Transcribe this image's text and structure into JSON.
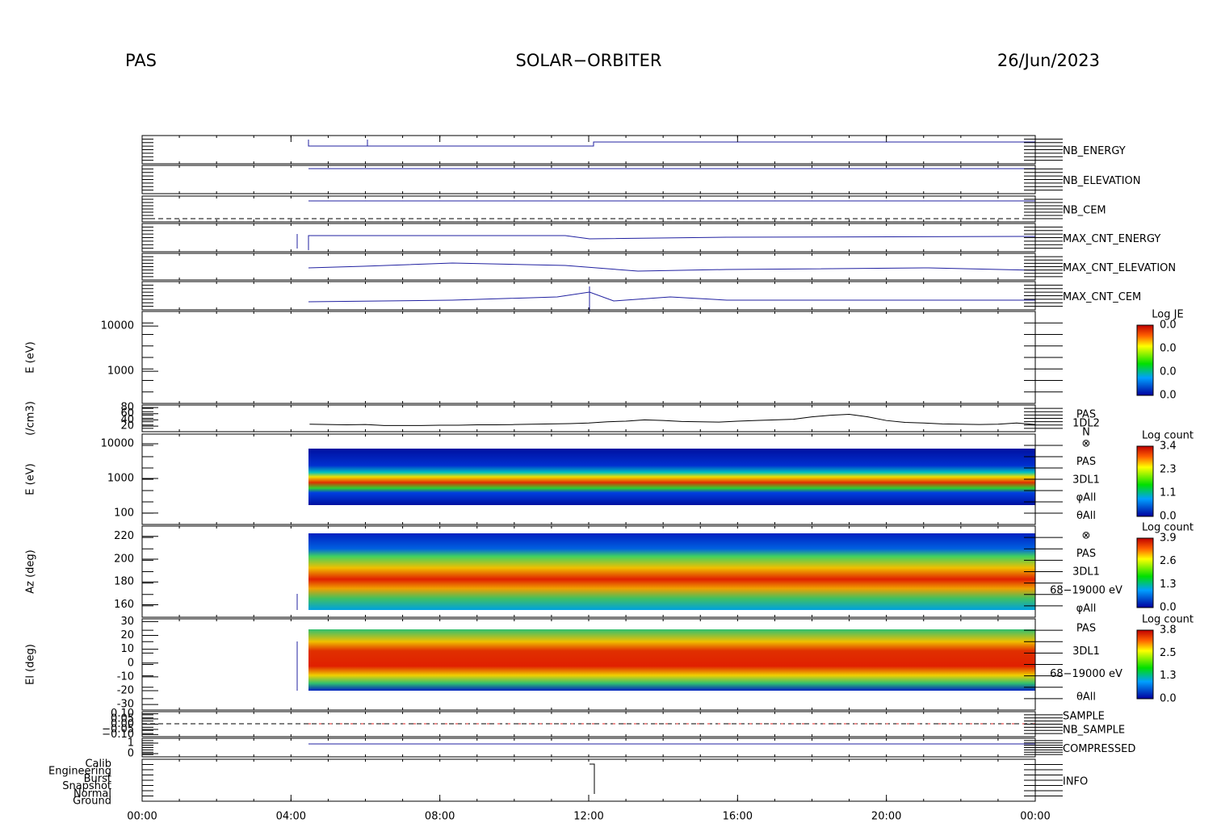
{
  "header": {
    "left": "PAS",
    "center": "SOLAR−ORBITER",
    "right": "26/Jun/2023"
  },
  "chart_data": {
    "type": "multi-panel",
    "xlim": [
      0,
      24
    ],
    "xticks": [
      {
        "value": 0,
        "label": "00:00"
      },
      {
        "value": 4,
        "label": "04:00"
      },
      {
        "value": 8,
        "label": "08:00"
      },
      {
        "value": 12,
        "label": "12:00"
      },
      {
        "value": 16,
        "label": "16:00"
      },
      {
        "value": 20,
        "label": "20:00"
      },
      {
        "value": 24,
        "label": "00:00"
      }
    ],
    "panels": [
      {
        "label": "NB_ENERGY",
        "label_color": "#2020a0"
      },
      {
        "label": "NB_ELEVATION",
        "label_color": "#2020a0"
      },
      {
        "label": "NB_CEM",
        "label_color": "#2020a0"
      },
      {
        "label": "MAX_CNT_ENERGY",
        "label_color": "#2020a0"
      },
      {
        "label": "MAX_CNT_ELEVATION",
        "label_color": "#2020a0"
      },
      {
        "label": "MAX_CNT_CEM",
        "label_color": "#2020a0"
      },
      {
        "ylabel": "E (eV)",
        "log": true,
        "ylim": [
          195,
          21000
        ],
        "yticks": [
          10000,
          1000
        ],
        "colorbar": {
          "title": "Log JE",
          "labels": [
            "0.0",
            "0.0",
            "0.0",
            "0.0"
          ]
        }
      },
      {
        "ylabel": "(/cm3)",
        "ylim": [
          2,
          88
        ],
        "yticks": [
          80,
          60,
          40,
          20
        ],
        "side_labels": [
          "PAS",
          "1DL2",
          "N"
        ],
        "series": {
          "color": "#000000",
          "x": [
            4.5,
            5,
            5.5,
            6,
            6.5,
            7,
            7.5,
            8,
            8.5,
            9,
            9.5,
            10,
            10.5,
            11,
            11.5,
            12,
            12.5,
            13,
            13.5,
            14,
            14.5,
            15,
            15.5,
            16,
            16.5,
            17,
            17.5,
            18,
            18.5,
            19,
            19.5,
            20,
            20.5,
            21,
            21.5,
            22,
            22.5,
            23,
            23.5,
            24
          ],
          "values": [
            26,
            25,
            24,
            25,
            22,
            22,
            22,
            23,
            23,
            24,
            24,
            25,
            26,
            27,
            28,
            30,
            34,
            36,
            40,
            38,
            35,
            34,
            33,
            36,
            38,
            40,
            42,
            50,
            55,
            58,
            50,
            38,
            32,
            30,
            27,
            26,
            25,
            26,
            30,
            25
          ]
        }
      },
      {
        "ylabel": "E (eV)",
        "log": true,
        "ylim": [
          47,
          19000
        ],
        "yticks": [
          10000,
          1000,
          100
        ],
        "side_labels": [
          "⊗",
          "PAS",
          "3DL1",
          "φAll",
          "θAll"
        ],
        "colorbar": {
          "title": "Log count",
          "labels": [
            "3.4",
            "2.3",
            "1.1",
            "0.0"
          ]
        }
      },
      {
        "ylabel": "Az (deg)",
        "ylim": [
          149,
          229
        ],
        "yticks": [
          220,
          200,
          180,
          160
        ],
        "side_labels": [
          "⊗",
          "PAS",
          "3DL1",
          "68−19000 eV",
          "φAll"
        ],
        "colorbar": {
          "title": "Log count",
          "labels": [
            "3.9",
            "2.6",
            "1.3",
            "0.0"
          ]
        }
      },
      {
        "ylabel": "El (deg)",
        "ylim": [
          -34,
          32
        ],
        "yticks": [
          30,
          20,
          10,
          0,
          -10,
          -20,
          -30
        ],
        "side_labels": [
          "PAS",
          "3DL1",
          "68−19000 eV",
          "θAll"
        ],
        "colorbar": {
          "title": "Log count",
          "labels": [
            "3.8",
            "2.5",
            "1.3",
            "0.0"
          ]
        }
      },
      {
        "label": "SAMPLE",
        "label_color": "#2020a0",
        "label2": "NB_SAMPLE",
        "label2_color": "#e02020",
        "ylim": [
          -0.12,
          0.12
        ],
        "yticks": [
          {
            "value": 0.1,
            "label": "0.10"
          },
          {
            "value": 0.05,
            "label": "0.05"
          },
          {
            "value": 0,
            "label": "0.00"
          },
          {
            "value": -0.05,
            "label": "−0.05"
          },
          {
            "value": -0.1,
            "label": "−0.10"
          }
        ]
      },
      {
        "label": "COMPRESSED",
        "label_color": "#2020a0",
        "ylim": [
          -0.31,
          1.46
        ],
        "yticks": [
          1,
          0
        ]
      },
      {
        "label": "INFO",
        "label_color": "#2020a0",
        "categories": [
          "Calib",
          "Engineering",
          "Burst",
          "Snapshot",
          "Normal",
          "Ground"
        ]
      }
    ]
  }
}
